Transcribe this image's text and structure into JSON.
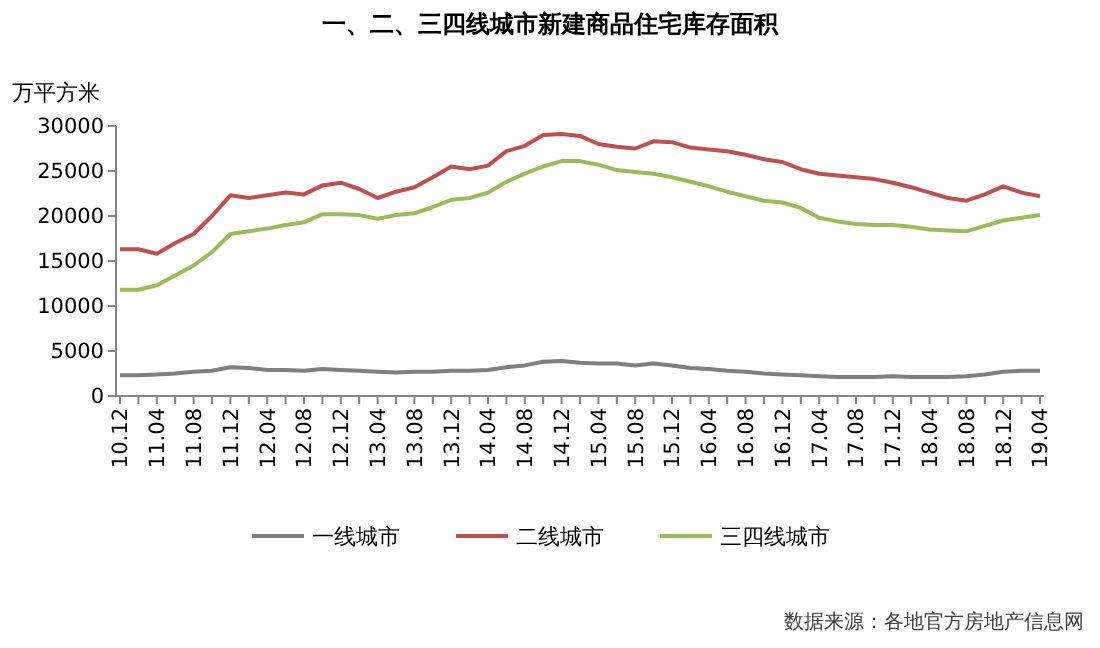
{
  "chart_data": {
    "type": "line",
    "title": "一、二、三四线城市新建商品住宅库存面积",
    "ylabel": "万平方米",
    "categories": [
      "10.12",
      null,
      "11.04",
      null,
      "11.08",
      null,
      "11.12",
      null,
      "12.04",
      null,
      "12.08",
      null,
      "12.12",
      null,
      "13.04",
      null,
      "13.08",
      null,
      "13.12",
      null,
      "14.04",
      null,
      "14.08",
      null,
      "14.12",
      null,
      "15.04",
      null,
      "15.08",
      null,
      "15.12",
      null,
      "16.04",
      null,
      "16.08",
      null,
      "16.12",
      null,
      "17.04",
      null,
      "17.08",
      null,
      "17.12",
      null,
      "18.04",
      null,
      "18.08",
      null,
      "18.12",
      null,
      "19.04"
    ],
    "series": [
      {
        "name": "一线城市",
        "color": "#7f7f7f",
        "values": [
          2300,
          2300,
          2400,
          2500,
          2700,
          2800,
          3200,
          3100,
          2900,
          2900,
          2800,
          3000,
          2900,
          2800,
          2700,
          2600,
          2700,
          2700,
          2800,
          2800,
          2900,
          3200,
          3400,
          3800,
          3900,
          3700,
          3600,
          3600,
          3400,
          3600,
          3400,
          3100,
          3000,
          2800,
          2700,
          2500,
          2400,
          2300,
          2200,
          2100,
          2100,
          2100,
          2200,
          2100,
          2100,
          2100,
          2200,
          2400,
          2700,
          2800,
          2800
        ]
      },
      {
        "name": "二线城市",
        "color": "#c0504d",
        "values": [
          16300,
          16300,
          15800,
          17000,
          18000,
          20000,
          22300,
          22000,
          22300,
          22600,
          22400,
          23400,
          23700,
          23000,
          22000,
          22700,
          23200,
          24300,
          25500,
          25200,
          25600,
          27200,
          27800,
          29000,
          29100,
          28900,
          28000,
          27700,
          27500,
          28300,
          28200,
          27600,
          27400,
          27200,
          26800,
          26300,
          26000,
          25200,
          24700,
          24500,
          24300,
          24100,
          23700,
          23200,
          22600,
          22000,
          21700,
          22400,
          23300,
          22600,
          22200
        ]
      },
      {
        "name": "三四线城市",
        "color": "#9bbb59",
        "values": [
          11800,
          11800,
          12300,
          13400,
          14500,
          16000,
          18000,
          18300,
          18600,
          19000,
          19300,
          20200,
          20200,
          20100,
          19700,
          20100,
          20300,
          21000,
          21800,
          22000,
          22600,
          23800,
          24700,
          25500,
          26100,
          26100,
          25700,
          25100,
          24900,
          24700,
          24300,
          23800,
          23300,
          22700,
          22200,
          21700,
          21500,
          20900,
          19800,
          19400,
          19100,
          19000,
          19000,
          18800,
          18500,
          18400,
          18300,
          18900,
          19500,
          19800,
          20100
        ]
      }
    ],
    "ylim": [
      0,
      30000
    ],
    "yticks": [
      0,
      5000,
      10000,
      15000,
      20000,
      25000,
      30000
    ],
    "grid": false,
    "legend": "bottom",
    "marker": "none",
    "line_style": "solid",
    "annotations": [
      "数据来源：各地官方房地产信息网"
    ]
  }
}
